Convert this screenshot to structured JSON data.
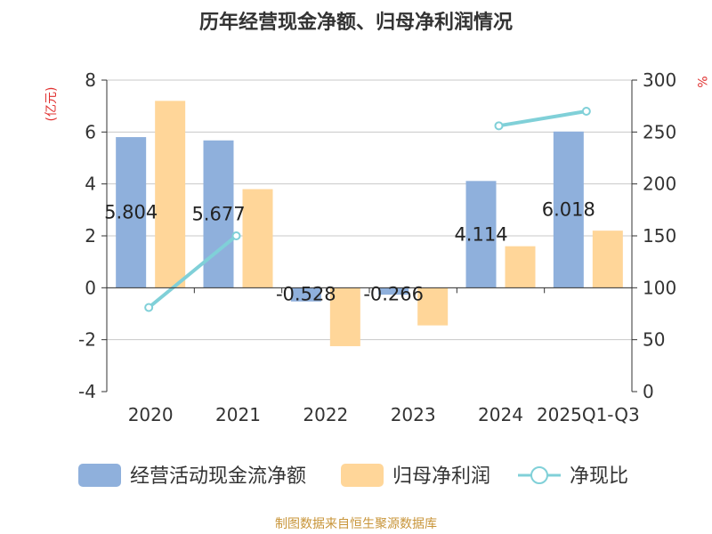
{
  "chart_data": {
    "type": "bar",
    "title": "历年经营现金净额、归母净利润情况",
    "categories": [
      "2020",
      "2021",
      "2022",
      "2023",
      "2024",
      "2025Q1-Q3"
    ],
    "y_left": {
      "label": "(亿元)",
      "lim": [
        -4,
        8
      ],
      "ticks": [
        -4,
        -2,
        0,
        2,
        4,
        6,
        8
      ]
    },
    "y_right": {
      "label": "%",
      "lim": [
        0,
        300
      ],
      "ticks": [
        0,
        50,
        100,
        150,
        200,
        250,
        300
      ]
    },
    "series": [
      {
        "name": "经营活动现金流净额",
        "type": "bar",
        "axis": "left",
        "color": "#8fb0dc",
        "values": [
          5.804,
          5.677,
          -0.528,
          -0.266,
          4.114,
          6.018
        ],
        "labels": [
          "5.804",
          "5.677",
          "-0.528",
          "-0.266",
          "4.114",
          "6.018"
        ]
      },
      {
        "name": "归母净利润",
        "type": "bar",
        "axis": "left",
        "color": "#ffd699",
        "values": [
          7.2,
          3.8,
          -2.25,
          -1.45,
          1.6,
          2.2
        ]
      },
      {
        "name": "净现比",
        "type": "line",
        "axis": "right",
        "color": "#80d0d8",
        "values": [
          81,
          150,
          null,
          null,
          256,
          270
        ]
      }
    ],
    "grid": true,
    "legend_position": "bottom",
    "source": "制图数据来自恒生聚源数据库"
  }
}
